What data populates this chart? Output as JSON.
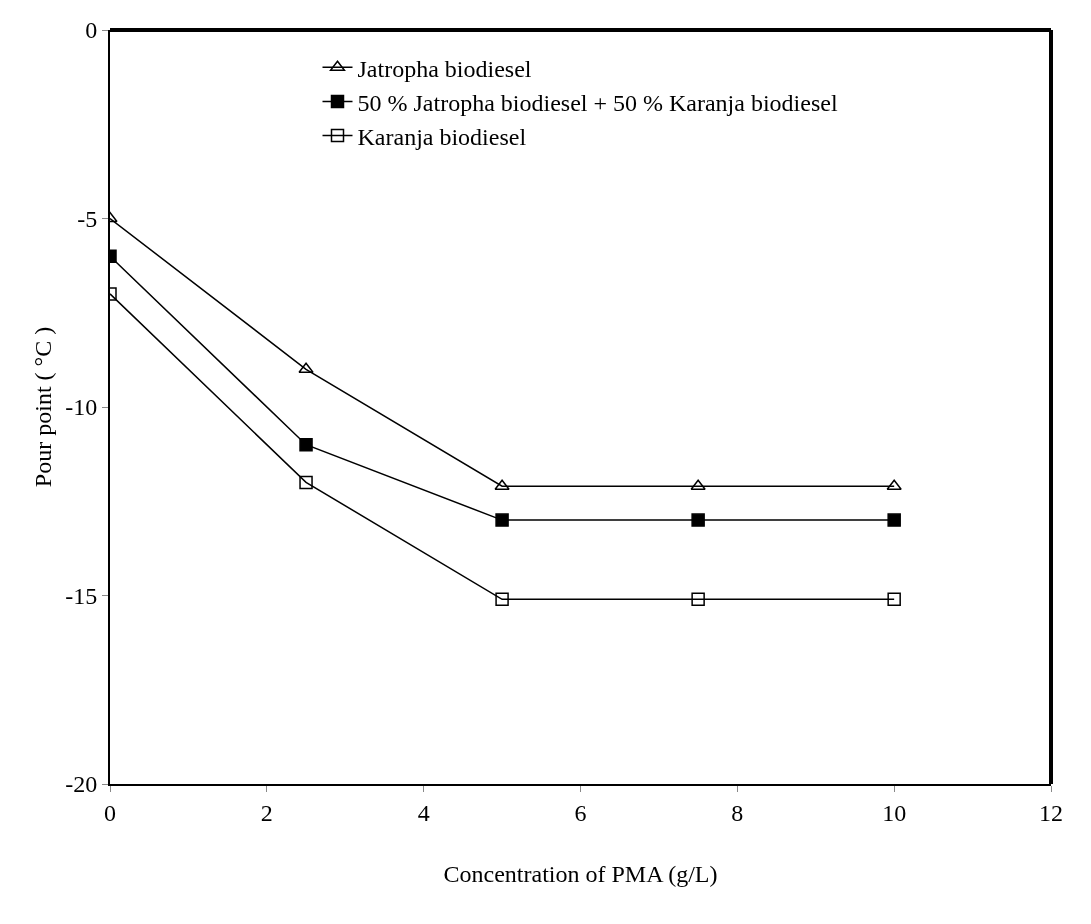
{
  "chart_data": {
    "type": "line",
    "xlabel": "Concentration of PMA (g/L)",
    "ylabel": "Pour point ( °C )",
    "x": [
      0,
      2.5,
      5,
      7.5,
      10
    ],
    "series": [
      {
        "name": "Jatropha biodiesel",
        "color": "#000000",
        "marker": "triangle-open",
        "values": [
          -5,
          -9,
          -12.1,
          -12.1,
          -12.1
        ]
      },
      {
        "name": "50 % Jatropha biodiesel + 50 % Karanja biodiesel",
        "color": "#000000",
        "marker": "square",
        "values": [
          -6,
          -11,
          -13,
          -13,
          -13
        ]
      },
      {
        "name": "Karanja biodiesel",
        "color": "#000000",
        "marker": "square-open",
        "values": [
          -7,
          -12,
          -15.1,
          -15.1,
          -15.1
        ]
      }
    ],
    "xlim": [
      0,
      12
    ],
    "xticks": [
      0,
      2,
      4,
      6,
      8,
      10,
      12
    ],
    "ylim": [
      -20,
      0
    ],
    "yticks": [
      -20,
      -15,
      -10,
      -5,
      0
    ],
    "grid": false,
    "legend": "top",
    "line_style": "solid"
  }
}
